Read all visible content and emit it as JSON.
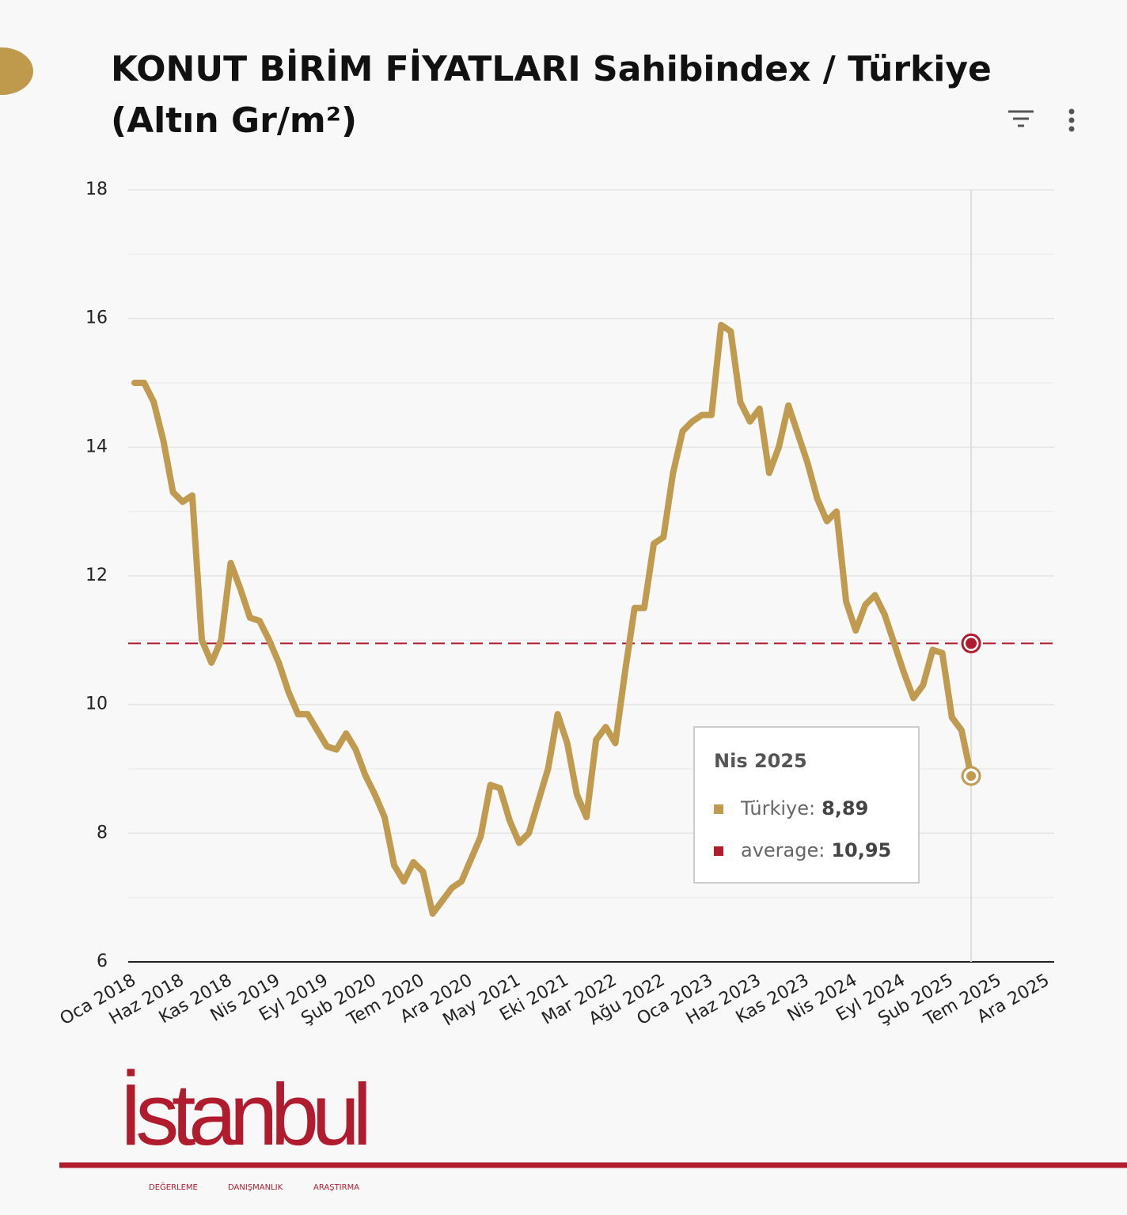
{
  "chart_data": {
    "type": "line",
    "title": "KONUT BİRİM FİYATLARI Sahibindex / Türkiye",
    "subtitle": "(Altın Gr/m²)",
    "categories": [
      "Oca 2018",
      null,
      null,
      null,
      null,
      "Haz 2018",
      null,
      null,
      null,
      null,
      "Kas 2018",
      null,
      null,
      null,
      null,
      "Nis 2019",
      null,
      null,
      null,
      null,
      "Eyl 2019",
      null,
      null,
      null,
      null,
      "Şub 2020",
      null,
      null,
      null,
      null,
      "Tem 2020",
      null,
      null,
      null,
      null,
      "Ara 2020",
      null,
      null,
      null,
      null,
      "May 2021",
      null,
      null,
      null,
      null,
      "Eki 2021",
      null,
      null,
      null,
      null,
      "Mar 2022",
      null,
      null,
      null,
      null,
      "Ağu 2022",
      null,
      null,
      null,
      null,
      "Oca 2023",
      null,
      null,
      null,
      null,
      "Haz 2023",
      null,
      null,
      null,
      null,
      "Kas 2023",
      null,
      null,
      null,
      null,
      "Nis 2024",
      null,
      null,
      null,
      null,
      "Eyl 2024",
      null,
      null,
      null,
      null,
      "Şub 2025",
      null,
      null,
      null,
      null,
      "Tem 2025",
      null,
      null,
      null,
      null,
      "Ara 2025"
    ],
    "series": [
      {
        "name": "Türkiye",
        "color": "#c09a4e",
        "values": [
          15.0,
          15.0,
          14.7,
          14.1,
          13.3,
          13.15,
          13.25,
          11.0,
          10.65,
          11.0,
          12.2,
          11.8,
          11.35,
          11.3,
          11.0,
          10.65,
          10.2,
          9.85,
          9.85,
          9.6,
          9.35,
          9.3,
          9.55,
          9.3,
          8.9,
          8.6,
          8.25,
          7.5,
          7.25,
          7.55,
          7.4,
          6.75,
          6.95,
          7.15,
          7.25,
          7.6,
          7.95,
          8.75,
          8.7,
          8.2,
          7.85,
          8.0,
          8.5,
          9.0,
          9.85,
          9.4,
          8.6,
          8.25,
          9.45,
          9.65,
          9.4,
          10.5,
          11.5,
          11.5,
          12.5,
          12.6,
          13.6,
          14.25,
          14.4,
          14.5,
          14.5,
          15.9,
          15.8,
          14.7,
          14.4,
          14.6,
          13.6,
          14.0,
          14.65,
          14.2,
          13.75,
          13.2,
          12.85,
          13.0,
          11.6,
          11.15,
          11.55,
          11.7,
          11.4,
          10.95,
          10.5,
          10.1,
          10.3,
          10.85,
          10.8,
          9.8,
          9.6,
          8.89,
          null,
          null,
          null,
          null,
          null,
          null,
          null,
          null
        ]
      }
    ],
    "reference_lines": [
      {
        "name": "average",
        "value": 10.95,
        "color": "#b01c2e"
      }
    ],
    "ylim": [
      6,
      18
    ],
    "yticks": [
      6,
      8,
      10,
      12,
      14,
      16,
      18
    ],
    "minor_yticks": [
      7,
      9,
      11,
      13,
      15,
      17
    ],
    "grid": true,
    "tooltip": {
      "index": 87,
      "title": "Nis 2025",
      "items": [
        {
          "label": "Türkiye:",
          "value_label": "8,89"
        },
        {
          "label": "average:",
          "value_label": "10,95"
        }
      ]
    }
  },
  "brand": {
    "name": "İstanbul",
    "tags": [
      "DEĞERLEME",
      "DANIŞMANLIK",
      "ARAŞTIRMA"
    ]
  }
}
